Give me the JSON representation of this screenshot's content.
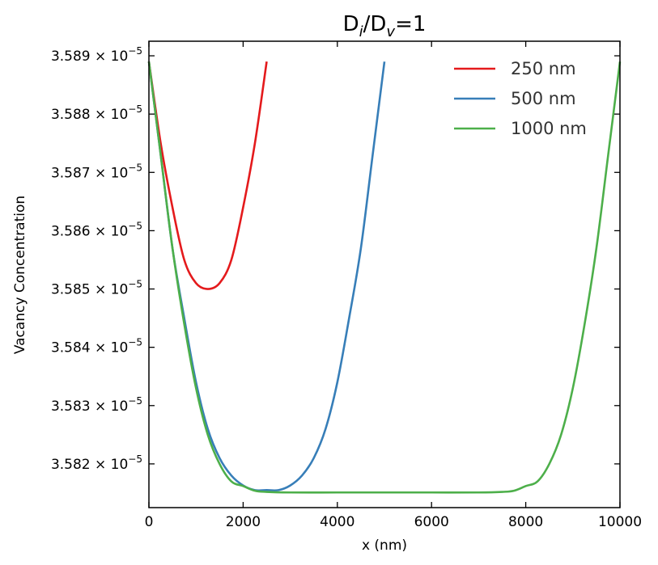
{
  "chart_data": {
    "type": "line",
    "title_parts": {
      "base1": "D",
      "sub1": "i",
      "mid": "/D",
      "sub2": "v",
      "tail": "=1"
    },
    "xlabel": "x (nm)",
    "ylabel": "Vacancy Concentration",
    "xlim": [
      0,
      10000
    ],
    "ylim": [
      3.58125e-05,
      3.58925e-05
    ],
    "x_ticks": [
      0,
      2000,
      4000,
      6000,
      8000,
      10000
    ],
    "x_tick_labels": [
      "0",
      "2000",
      "4000",
      "6000",
      "8000",
      "10000"
    ],
    "y_ticks": [
      3.582e-05,
      3.583e-05,
      3.584e-05,
      3.585e-05,
      3.586e-05,
      3.587e-05,
      3.588e-05,
      3.589e-05
    ],
    "y_tick_mantissas": [
      "3.582",
      "3.583",
      "3.584",
      "3.585",
      "3.586",
      "3.587",
      "3.588",
      "3.589"
    ],
    "y_tick_exponent_text": "× 10",
    "y_tick_exponent": "−5",
    "legend_position": "top-right",
    "grid": false,
    "series": [
      {
        "name": "250 nm",
        "color": "#e41a1c",
        "x": [
          0,
          250,
          500,
          750,
          1000,
          1250,
          1500,
          1750,
          2000,
          2250,
          2500
        ],
        "y": [
          3.5889e-05,
          3.5875e-05,
          3.5864e-05,
          3.5855e-05,
          3.5851e-05,
          3.585e-05,
          3.5851e-05,
          3.5855e-05,
          3.5864e-05,
          3.5875e-05,
          3.5889e-05
        ]
      },
      {
        "name": "500 nm",
        "color": "#377eb8",
        "x": [
          0,
          250,
          500,
          750,
          1000,
          1250,
          1500,
          1750,
          2000,
          2250,
          2500,
          2750,
          3000,
          3250,
          3500,
          3750,
          4000,
          4250,
          4500,
          4750,
          5000
        ],
        "y": [
          3.5889e-05,
          3.5873e-05,
          3.5857e-05,
          3.5845e-05,
          3.5834e-05,
          3.5826e-05,
          3.5821e-05,
          3.5818e-05,
          3.58163e-05,
          3.58155e-05,
          3.58155e-05,
          3.58155e-05,
          3.58163e-05,
          3.5818e-05,
          3.5821e-05,
          3.5826e-05,
          3.5834e-05,
          3.5845e-05,
          3.5857e-05,
          3.5873e-05,
          3.5889e-05
        ]
      },
      {
        "name": "1000 nm",
        "color": "#4daf4a",
        "x": [
          0,
          250,
          500,
          750,
          1000,
          1250,
          1500,
          1750,
          2000,
          2250,
          2500,
          3000,
          4000,
          5000,
          6000,
          7000,
          7500,
          7750,
          8000,
          8250,
          8500,
          8750,
          9000,
          9250,
          9500,
          9750,
          10000
        ],
        "y": [
          3.5889e-05,
          3.5873e-05,
          3.5857e-05,
          3.5844e-05,
          3.5833e-05,
          3.5825e-05,
          3.582e-05,
          3.5817e-05,
          3.58162e-05,
          3.58154e-05,
          3.58152e-05,
          3.58151e-05,
          3.58151e-05,
          3.58151e-05,
          3.58151e-05,
          3.58151e-05,
          3.58152e-05,
          3.58154e-05,
          3.58162e-05,
          3.5817e-05,
          3.582e-05,
          3.5825e-05,
          3.5833e-05,
          3.5844e-05,
          3.5857e-05,
          3.5873e-05,
          3.5889e-05
        ]
      }
    ]
  }
}
